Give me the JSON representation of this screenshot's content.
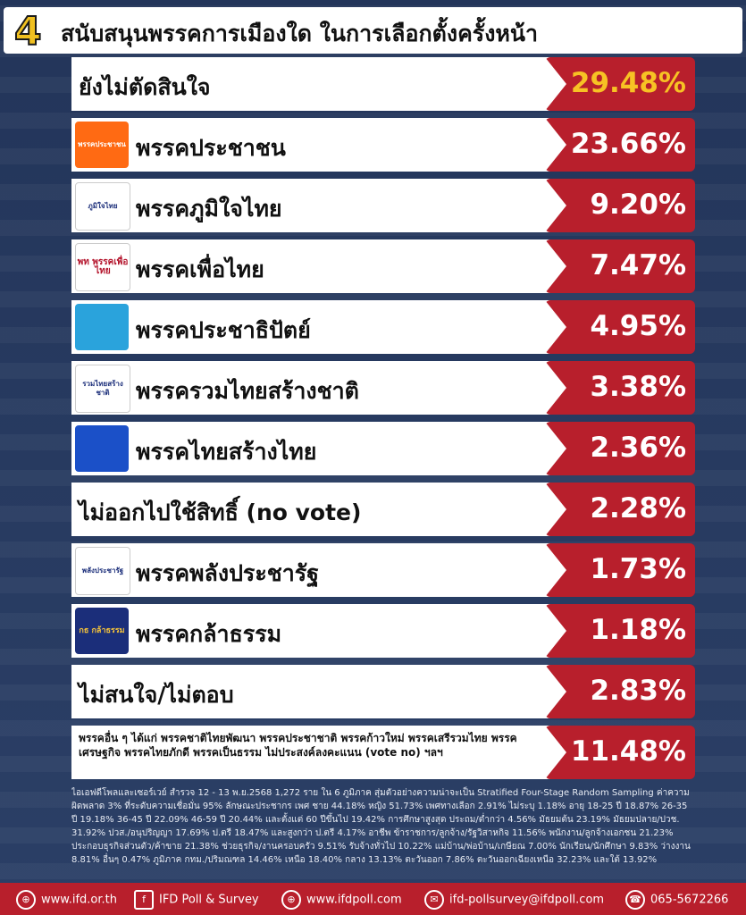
{
  "header": {
    "number": "4",
    "title": "สนับสนุนพรรคการเมืองใด ในการเลือกตั้งครั้งหน้า"
  },
  "chart_data": {
    "type": "bar",
    "categories": [
      "ยังไม่ตัดสินใจ",
      "พรรคประชาชน",
      "พรรคภูมิใจไทย",
      "พรรคเพื่อไทย",
      "พรรคประชาธิปัตย์",
      "พรรครวมไทยสร้างชาติ",
      "พรรคไทยสร้างไทย",
      "ไม่ออกไปใช้สิทธิ์ (no vote)",
      "พรรคพลังประชารัฐ",
      "พรรคกล้าธรรม",
      "ไม่สนใจ/ไม่ตอบ",
      "พรรคอื่น ๆ ได้แก่ พรรคชาติไทยพัฒนา พรรคประชาชาติ พรรคก้าวใหม่ พรรคเสรีรวมไทย พรรคเศรษฐกิจ พรรคไทยภักดี พรรคเป็นธรรม ไม่ประสงค์ลงคะแนน (vote no) ฯลฯ"
    ],
    "values": [
      29.48,
      23.66,
      9.2,
      7.47,
      4.95,
      3.38,
      2.36,
      2.28,
      1.73,
      1.18,
      2.83,
      11.48
    ],
    "value_labels": [
      "29.48%",
      "23.66%",
      "9.20%",
      "7.47%",
      "4.95%",
      "3.38%",
      "2.36%",
      "2.28%",
      "1.73%",
      "1.18%",
      "2.83%",
      "11.48%"
    ],
    "unit": "%"
  },
  "logos": [
    "",
    "พรรคประชาชน",
    "ภูมิใจไทย",
    "พท พรรคเพื่อไทย",
    "",
    "รวมไทยสร้างชาติ",
    "",
    "",
    "พลังประชารัฐ",
    "กธ กล้าธรรม",
    "",
    ""
  ],
  "colors": {
    "accent_red": "#b81f2c",
    "highlight_yellow": "#f7c224",
    "background_navy": "#23355a"
  },
  "footnote": "ไอเอฟดีโพลและเซอร์เวย์ สำรวจ 12 - 13 พ.ย.2568 1,272 ราย ใน 6 ภูมิภาค สุ่มตัวอย่างความน่าจะเป็น Stratified Four-Stage Random Sampling ค่าความผิดพลาด 3% ที่ระดับความเชื่อมั่น 95% ลักษณะประชากร เพศ ชาย 44.18% หญิง 51.73% เพศทางเลือก 2.91% ไม่ระบุ 1.18% อายุ 18-25 ปี 18.87% 26-35 ปี 19.18% 36-45 ปี 22.09% 46-59 ปี 20.44% และตั้งแต่ 60 ปีขึ้นไป 19.42% การศึกษาสูงสุด ประถม/ต่ำกว่า 4.56% มัธยมต้น 23.19% มัธยมปลาย/ปวช. 31.92% ปวส./อนุปริญญา 17.69% ป.ตรี 18.47% และสูงกว่า ป.ตรี 4.17% อาชีพ ข้าราชการ/ลูกจ้าง/รัฐวิสาหกิจ 11.56% พนักงาน/ลูกจ้างเอกชน 21.23% ประกอบธุรกิจส่วนตัว/ค้าขาย 21.38% ช่วยธุรกิจ/งานครอบครัว 9.51% รับจ้างทั่วไป 10.22% แม่บ้าน/พ่อบ้าน/เกษียณ 7.00% นักเรียน/นักศึกษา 9.83% ว่างงาน 8.81% อื่นๆ 0.47% ภูมิภาค กทม./ปริมณฑล 14.46% เหนือ 18.40% กลาง 13.13% ตะวันออก 7.86% ตะวันออกเฉียงเหนือ 32.23% และใต้ 13.92%",
  "contact": {
    "website": "www.ifd.or.th",
    "facebook": "IFD Poll & Survey",
    "poll_site": "www.ifdpoll.com",
    "email": "ifd-pollsurvey@ifdpoll.com",
    "phone": "065-5672266"
  }
}
